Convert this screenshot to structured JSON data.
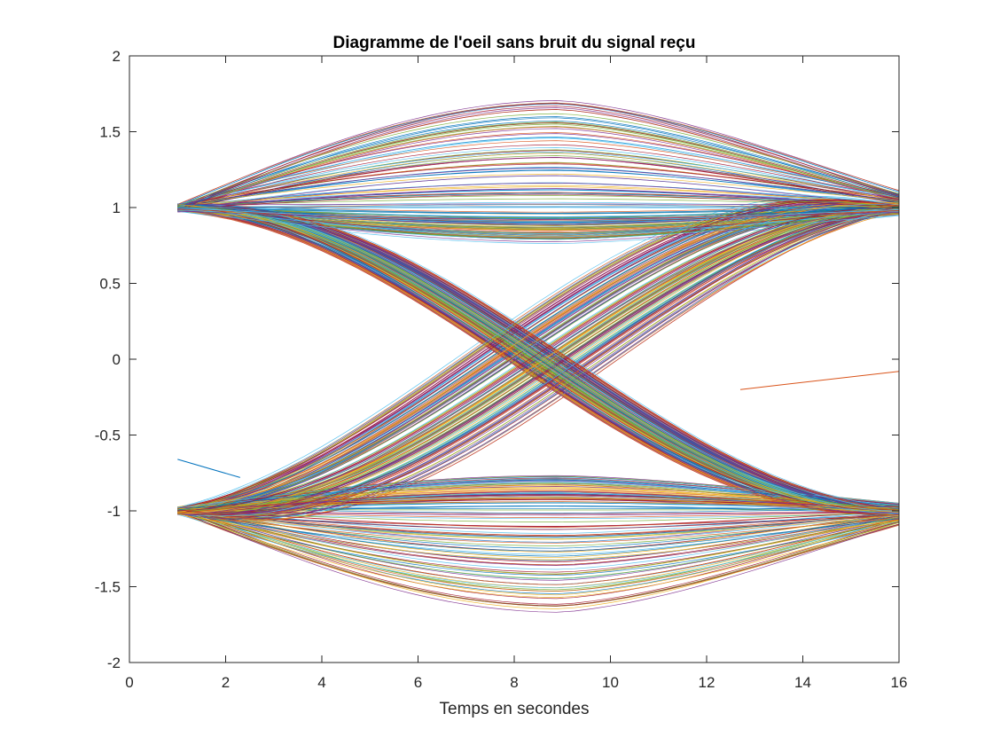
{
  "chart_data": {
    "type": "line",
    "title": "Diagramme de l'oeil sans bruit du signal reçu",
    "xlabel": "Temps en secondes",
    "ylabel": "",
    "xlim": [
      0,
      16
    ],
    "ylim": [
      -2,
      2
    ],
    "xticks": [
      0,
      2,
      4,
      6,
      8,
      10,
      12,
      14,
      16
    ],
    "xtick_labels": [
      "0",
      "2",
      "4",
      "6",
      "8",
      "10",
      "12",
      "14",
      "16"
    ],
    "yticks": [
      -2,
      -1.5,
      -1,
      -0.5,
      0,
      0.5,
      1,
      1.5,
      2
    ],
    "ytick_labels": [
      "-2",
      "-1.5",
      "-1",
      "-0.5",
      "0",
      "0.5",
      "1",
      "1.5",
      "2"
    ],
    "grid": false,
    "eye": {
      "x_start": 1,
      "x_end": 16,
      "x_center": 9,
      "start_levels": [
        -1,
        1
      ],
      "end_levels": [
        -1,
        1
      ],
      "inner_peak_abs": 0.78,
      "outer_peak_abs": 1.7,
      "trace_count": 600,
      "colors": [
        "#0072BD",
        "#D95319",
        "#EDB120",
        "#7E2F8E",
        "#77AC30",
        "#4DBEEE",
        "#A2142F"
      ]
    },
    "stray_traces": [
      {
        "color": "#0072BD",
        "x": [
          1,
          2.3
        ],
        "y": [
          -0.66,
          -0.78
        ]
      },
      {
        "color": "#D95319",
        "x": [
          12.7,
          16
        ],
        "y": [
          -0.2,
          -0.08
        ]
      }
    ]
  }
}
